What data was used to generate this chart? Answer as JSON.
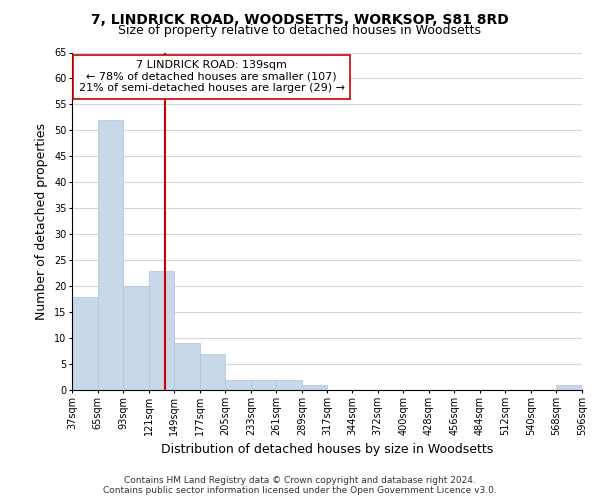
{
  "title": "7, LINDRICK ROAD, WOODSETTS, WORKSOP, S81 8RD",
  "subtitle": "Size of property relative to detached houses in Woodsetts",
  "xlabel": "Distribution of detached houses by size in Woodsetts",
  "ylabel": "Number of detached properties",
  "bar_edges": [
    37,
    65,
    93,
    121,
    149,
    177,
    205,
    233,
    261,
    289,
    317,
    344,
    372,
    400,
    428,
    456,
    484,
    512,
    540,
    568,
    596
  ],
  "bar_heights": [
    18,
    52,
    20,
    23,
    9,
    7,
    2,
    2,
    2,
    1,
    0,
    0,
    0,
    0,
    0,
    0,
    0,
    0,
    0,
    1
  ],
  "bar_color": "#c8d8e8",
  "bar_edge_color": "#b0c4d8",
  "grid_color": "#d0d8e0",
  "property_line_x": 139,
  "property_line_color": "#cc0000",
  "annotation_text_line1": "7 LINDRICK ROAD: 139sqm",
  "annotation_text_line2": "← 78% of detached houses are smaller (107)",
  "annotation_text_line3": "21% of semi-detached houses are larger (29) →",
  "annotation_box_color": "#ffffff",
  "annotation_border_color": "#cc0000",
  "ylim": [
    0,
    65
  ],
  "yticks": [
    0,
    5,
    10,
    15,
    20,
    25,
    30,
    35,
    40,
    45,
    50,
    55,
    60,
    65
  ],
  "footer_line1": "Contains HM Land Registry data © Crown copyright and database right 2024.",
  "footer_line2": "Contains public sector information licensed under the Open Government Licence v3.0.",
  "background_color": "#ffffff",
  "title_fontsize": 10,
  "subtitle_fontsize": 9,
  "axis_label_fontsize": 9,
  "tick_label_fontsize": 7,
  "annotation_fontsize": 8,
  "footer_fontsize": 6.5
}
